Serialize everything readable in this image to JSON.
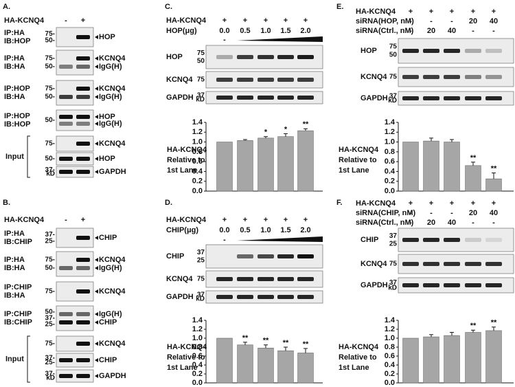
{
  "panels": [
    {
      "label": "A.",
      "header": [
        {
          "name": "HA-KCNQ4",
          "lanes": [
            "-",
            "+"
          ]
        }
      ],
      "input_label": "Input",
      "strips": [
        {
          "labels": [
            "IP:HA",
            "IB:HOP"
          ],
          "markers": [
            "75-",
            "50-"
          ],
          "bands": [
            "HOP"
          ]
        },
        {
          "labels": [
            "IP:HA",
            "IB:HA"
          ],
          "markers": [
            "75-",
            "50-"
          ],
          "bands": [
            "KCNQ4",
            "IgG(H)"
          ]
        },
        {
          "labels": [
            "IP:HOP",
            "IB:HA"
          ],
          "markers": [
            "75-",
            "50-"
          ],
          "bands": [
            "KCNQ4",
            "IgG(H)"
          ]
        },
        {
          "labels": [
            "IP:HOP",
            "IB:HOP"
          ],
          "markers": [
            "50-"
          ],
          "bands": [
            "HOP",
            "IgG(H)"
          ]
        },
        {
          "markers": [
            "75-"
          ],
          "bands": [
            "KCNQ4"
          ]
        },
        {
          "markers": [
            "50-"
          ],
          "bands": [
            "HOP"
          ]
        },
        {
          "markers": [
            "37-",
            "kD"
          ],
          "bands": [
            "GAPDH"
          ]
        }
      ]
    },
    {
      "label": "B.",
      "header": [
        {
          "name": "HA-KCNQ4",
          "lanes": [
            "-",
            "+"
          ]
        }
      ],
      "input_label": "Input",
      "strips": [
        {
          "labels": [
            "IP:HA",
            "IB:CHIP"
          ],
          "markers": [
            "37-",
            "25-"
          ],
          "bands": [
            "CHIP"
          ]
        },
        {
          "labels": [
            "IP:HA",
            "IB:HA"
          ],
          "markers": [
            "75-",
            "50-"
          ],
          "bands": [
            "KCNQ4",
            "IgG(H)"
          ]
        },
        {
          "labels": [
            "IP:CHIP",
            "IB:HA"
          ],
          "markers": [
            "75-"
          ],
          "bands": [
            "KCNQ4"
          ]
        },
        {
          "labels": [
            "IP:CHIP",
            "IB:CHIP"
          ],
          "markers": [
            "50-",
            "37-",
            "25-"
          ],
          "bands": [
            "IgG(H)",
            "CHIP"
          ]
        },
        {
          "markers": [
            "75-"
          ],
          "bands": [
            "KCNQ4"
          ]
        },
        {
          "markers": [
            "37-",
            "25-"
          ],
          "bands": [
            "CHIP"
          ]
        },
        {
          "markers": [
            "37-",
            "kD"
          ],
          "bands": [
            "GAPDH"
          ]
        }
      ]
    },
    {
      "label": "C.",
      "header": [
        {
          "name": "HA-KCNQ4",
          "lanes": [
            "+",
            "+",
            "+",
            "+",
            "+"
          ]
        },
        {
          "name": "HOP(μg)",
          "lanes": [
            "0.0",
            "0.5",
            "1.0",
            "1.5",
            "2.0"
          ]
        }
      ],
      "wedge_label": "-",
      "strips": [
        {
          "labels": [
            "HOP"
          ],
          "markers": [
            "75",
            "50"
          ]
        },
        {
          "labels": [
            "KCNQ4"
          ],
          "markers": [
            "75"
          ]
        },
        {
          "labels": [
            "GAPDH"
          ],
          "markers": [
            "37",
            "kD"
          ]
        }
      ]
    },
    {
      "label": "D.",
      "header": [
        {
          "name": "HA-KCNQ4",
          "lanes": [
            "+",
            "+",
            "+",
            "+",
            "+"
          ]
        },
        {
          "name": "CHIP(μg)",
          "lanes": [
            "0.0",
            "0.5",
            "1.0",
            "1.5",
            "2.0"
          ]
        }
      ],
      "wedge_label": "-",
      "strips": [
        {
          "labels": [
            "CHIP"
          ],
          "markers": [
            "37",
            "25"
          ]
        },
        {
          "labels": [
            "KCNQ4"
          ],
          "markers": [
            "75"
          ]
        },
        {
          "labels": [
            "GAPDH"
          ],
          "markers": [
            "37",
            "kD"
          ]
        }
      ]
    },
    {
      "label": "E.",
      "header": [
        {
          "name": "HA-KCNQ4",
          "lanes": [
            "+",
            "+",
            "+",
            "+",
            "+"
          ]
        },
        {
          "name": "siRNA(HOP, nM)",
          "lanes": [
            "-",
            "-",
            "-",
            "20",
            "40"
          ]
        },
        {
          "name": "siRNA(Ctrl., nM)",
          "lanes": [
            "-",
            "20",
            "40",
            "-",
            "-"
          ]
        }
      ],
      "strips": [
        {
          "labels": [
            "HOP"
          ],
          "markers": [
            "75",
            "50"
          ]
        },
        {
          "labels": [
            "KCNQ4"
          ],
          "markers": [
            "75"
          ]
        },
        {
          "labels": [
            "GAPDH"
          ],
          "markers": [
            "37",
            "kD"
          ]
        }
      ]
    },
    {
      "label": "F.",
      "header": [
        {
          "name": "HA-KCNQ4",
          "lanes": [
            "+",
            "+",
            "+",
            "+",
            "+"
          ]
        },
        {
          "name": "siRNA(CHIP, nM)",
          "lanes": [
            "-",
            "-",
            "-",
            "20",
            "40"
          ]
        },
        {
          "name": "siRNA(Ctrl., nM)",
          "lanes": [
            "-",
            "20",
            "40",
            "-",
            "-"
          ]
        }
      ],
      "strips": [
        {
          "labels": [
            "CHIP"
          ],
          "markers": [
            "37",
            "25"
          ]
        },
        {
          "labels": [
            "KCNQ4"
          ],
          "markers": [
            "75"
          ]
        },
        {
          "labels": [
            "GAPDH"
          ],
          "markers": [
            "37",
            "kD"
          ]
        }
      ]
    }
  ],
  "chart_data": [
    {
      "type": "bar",
      "ylabel": [
        "HA-KCNQ4",
        "Relative to",
        "1st Lane"
      ],
      "color": "#a6a6a6",
      "values": [
        1.0,
        1.03,
        1.08,
        1.11,
        1.23
      ],
      "errors": [
        0,
        0.02,
        0.03,
        0.06,
        0.04
      ],
      "annotations": [
        null,
        null,
        "*",
        "*",
        "**"
      ],
      "ylim": [
        0,
        1.4
      ],
      "yticks": [
        {
          "value": 0,
          "label": "0.0"
        },
        0.2,
        0.4,
        0.6,
        0.8,
        {
          "value": 1,
          "label": "1.0"
        },
        1.2,
        1.4
      ]
    },
    {
      "type": "bar",
      "ylabel": [
        "HA-KCNQ4",
        "Relative to",
        "1st Lane"
      ],
      "color": "#a6a6a6",
      "values": [
        1.0,
        0.85,
        0.78,
        0.72,
        0.67
      ],
      "errors": [
        0,
        0.06,
        0.07,
        0.08,
        0.1
      ],
      "annotations": [
        null,
        "**",
        "**",
        "**",
        "**"
      ],
      "ylim": [
        0,
        1.4
      ],
      "yticks": [
        {
          "value": 0,
          "label": "0.0"
        },
        0.2,
        0.4,
        0.6,
        0.8,
        {
          "value": 1,
          "label": "1.0"
        },
        1.2,
        1.4
      ]
    },
    {
      "type": "bar",
      "ylabel": [
        "HA-KCNQ4",
        "Relative to",
        "1st Lane"
      ],
      "color": "#a6a6a6",
      "values": [
        1.0,
        1.02,
        1.0,
        0.52,
        0.25
      ],
      "errors": [
        0,
        0.06,
        0.05,
        0.07,
        0.12
      ],
      "annotations": [
        null,
        null,
        null,
        "**",
        "**"
      ],
      "ylim": [
        0,
        1.4
      ],
      "yticks": [
        {
          "value": 0,
          "label": "0.0"
        },
        0.2,
        0.4,
        0.6,
        0.8,
        {
          "value": 1,
          "label": "1.0"
        },
        1.2,
        1.4
      ]
    },
    {
      "type": "bar",
      "ylabel": [
        "HA-KCNQ4",
        "Relative to",
        "1st Lane"
      ],
      "color": "#a6a6a6",
      "values": [
        1.0,
        1.03,
        1.06,
        1.13,
        1.17
      ],
      "errors": [
        0,
        0.05,
        0.07,
        0.05,
        0.08
      ],
      "annotations": [
        null,
        null,
        null,
        "**",
        "**"
      ],
      "ylim": [
        0,
        1.4
      ],
      "yticks": [
        {
          "value": 0,
          "label": "0.0"
        },
        0.2,
        0.4,
        0.6,
        0.8,
        {
          "value": 1,
          "label": "1.0"
        },
        1.2,
        1.4
      ]
    }
  ]
}
